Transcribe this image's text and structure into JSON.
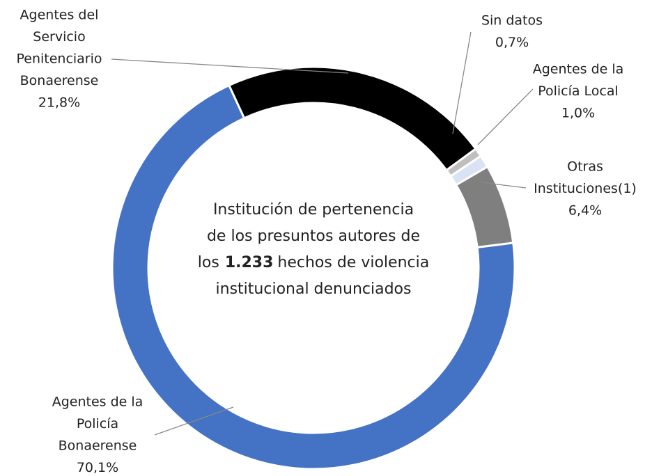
{
  "chart_data": {
    "type": "donut",
    "title": {
      "line1": "Institución de pertenencia",
      "line2": "de los presuntos autores de",
      "line3_start": "los",
      "count": "1.233",
      "line3_end": "hechos de violencia",
      "line4": "institucional denunciados"
    },
    "categories": [
      [
        "Agentes del",
        "Servicio",
        "Penitenciario",
        "Bonaerense"
      ],
      [
        "Sin datos"
      ],
      [
        "Agentes de la",
        "Policía Local"
      ],
      [
        "Otras",
        "Instituciones(1)"
      ],
      [
        "Agentes de la",
        "Policía",
        "Bonaerense"
      ]
    ],
    "values": [
      21.8,
      0.7,
      1.0,
      6.4,
      70.1
    ],
    "value_labels": [
      "21,8%",
      "0,7%",
      "1,0%",
      "6,4%",
      "70,1%"
    ],
    "colors": [
      "#000000",
      "#bfbfbf",
      "#dae3f3",
      "#7f7f7f",
      "#4472c4"
    ]
  }
}
